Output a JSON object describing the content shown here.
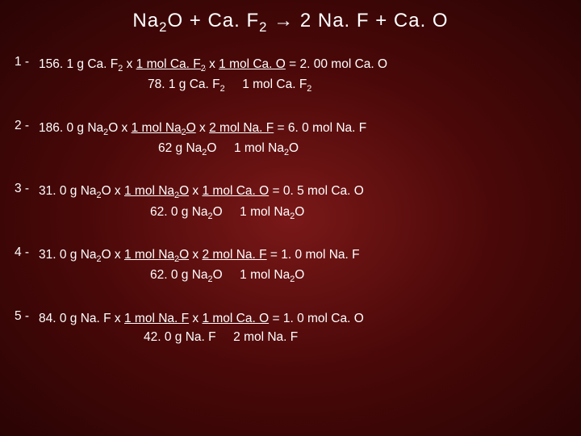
{
  "background_gradient": [
    "#7a1818",
    "#4a0808",
    "#2a0404"
  ],
  "text_color": "#ffffff",
  "font_family": "Arial",
  "equation": {
    "lhs1": "Na",
    "lhs1_sub": "2",
    "lhs1b": "O",
    "plus1": " + ",
    "lhs2": "Ca. F",
    "lhs2_sub": "2",
    "arrow": " → ",
    "rhs1": "2 Na. F",
    "plus2": " + ",
    "rhs2": "Ca. O",
    "fontsize": 24
  },
  "problem_fontsize": 15.5,
  "problems": [
    {
      "num": "1 -",
      "given": "156. 1 g Ca. F",
      "given_sub": "2",
      "x1": "  x  ",
      "f1_top": "1 mol Ca. F",
      "f1_top_sub": "2",
      "f1_bot": "78. 1 g Ca. F",
      "f1_bot_sub": "2",
      "x2": "  x  ",
      "f2_top": "1 mol Ca. O",
      "f2_bot": "1 mol Ca. F",
      "f2_bot_sub": "2",
      "eq": "  =  ",
      "result": "2. 00 mol Ca. O",
      "line2_pad": 135
    },
    {
      "num": "2 -",
      "given": "186. 0 g Na",
      "given_sub": "2",
      "given_b": "O",
      "x1": "  x  ",
      "f1_top": "1 mol Na",
      "f1_top_sub": "2",
      "f1_top_b": "O",
      "f1_bot": "62 g Na",
      "f1_bot_sub": "2",
      "f1_bot_b": "O",
      "x2": "  x  ",
      "f2_top": "2 mol Na. F",
      "f2_bot": "1 mol Na",
      "f2_bot_sub": "2",
      "f2_bot_b": "O",
      "eq": "  =  ",
      "result": "6. 0 mol Na. F",
      "line2_pad": 148
    },
    {
      "num": "3 -",
      "given": "31. 0 g Na",
      "given_sub": "2",
      "given_b": "O",
      "x1": "  x  ",
      "f1_top": "1 mol Na",
      "f1_top_sub": "2",
      "f1_top_b": "O",
      "f1_bot": "62. 0 g Na",
      "f1_bot_sub": "2",
      "f1_bot_b": "O",
      "x2": "  x  ",
      "f2_top": "1 mol Ca. O",
      "f2_bot": "1 mol Na",
      "f2_bot_sub": "2",
      "f2_bot_b": "O",
      "eq": "  =  ",
      "result": "0. 5 mol Ca. O",
      "line2_pad": 138
    },
    {
      "num": "4 -",
      "given": "31. 0 g Na",
      "given_sub": "2",
      "given_b": "O",
      "x1": "  x  ",
      "f1_top": "1 mol Na",
      "f1_top_sub": "2",
      "f1_top_b": "O",
      "f1_bot": "62. 0 g Na",
      "f1_bot_sub": "2",
      "f1_bot_b": "O",
      "x2": "  x  ",
      "f2_top": "2 mol Na. F",
      "f2_bot": "1 mol Na",
      "f2_bot_sub": "2",
      "f2_bot_b": "O",
      "eq": "    =  ",
      "result": "1. 0 mol Na. F",
      "line2_pad": 138
    },
    {
      "num": "5 -",
      "given": "84. 0 g Na. F",
      "x1": "  x  ",
      "f1_top": "1 mol Na. F",
      "f1_bot": "42. 0 g Na. F",
      "x2": "  x  ",
      "f2_top": "1 mol Ca. O",
      "f2_bot": "2 mol Na. F",
      "eq": "   =  ",
      "result": "1. 0 mol Ca. O",
      "line2_pad": 130
    }
  ]
}
